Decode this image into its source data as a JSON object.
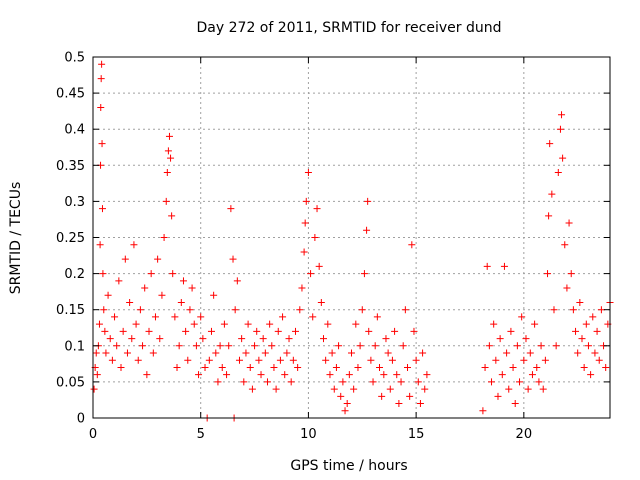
{
  "chart_data": {
    "type": "scatter",
    "title": "Day 272 of 2011, SRMTID for receiver dund",
    "xlabel": "GPS time / hours",
    "ylabel": "SRMTID / TECUs",
    "xlim": [
      0,
      24
    ],
    "ylim": [
      0,
      0.5
    ],
    "xticks": [
      0,
      5,
      10,
      15,
      20
    ],
    "yticks": [
      0,
      0.05,
      0.1,
      0.15,
      0.2,
      0.25,
      0.3,
      0.35,
      0.4,
      0.45,
      0.5
    ],
    "grid": true,
    "marker": "+",
    "color": "#ff0000",
    "points": [
      [
        0.05,
        0.04
      ],
      [
        0.1,
        0.07
      ],
      [
        0.15,
        0.09
      ],
      [
        0.2,
        0.06
      ],
      [
        0.25,
        0.1
      ],
      [
        0.3,
        0.13
      ],
      [
        0.33,
        0.24
      ],
      [
        0.35,
        0.35
      ],
      [
        0.36,
        0.43
      ],
      [
        0.38,
        0.47
      ],
      [
        0.4,
        0.49
      ],
      [
        0.42,
        0.38
      ],
      [
        0.44,
        0.29
      ],
      [
        0.46,
        0.2
      ],
      [
        0.5,
        0.15
      ],
      [
        0.55,
        0.12
      ],
      [
        0.6,
        0.09
      ],
      [
        0.7,
        0.17
      ],
      [
        0.8,
        0.11
      ],
      [
        0.9,
        0.08
      ],
      [
        1.0,
        0.14
      ],
      [
        1.1,
        0.1
      ],
      [
        1.2,
        0.19
      ],
      [
        1.3,
        0.07
      ],
      [
        1.4,
        0.12
      ],
      [
        1.5,
        0.22
      ],
      [
        1.6,
        0.09
      ],
      [
        1.7,
        0.16
      ],
      [
        1.8,
        0.11
      ],
      [
        1.9,
        0.24
      ],
      [
        2.0,
        0.13
      ],
      [
        2.1,
        0.08
      ],
      [
        2.2,
        0.15
      ],
      [
        2.3,
        0.1
      ],
      [
        2.4,
        0.18
      ],
      [
        2.5,
        0.06
      ],
      [
        2.6,
        0.12
      ],
      [
        2.7,
        0.2
      ],
      [
        2.8,
        0.09
      ],
      [
        2.9,
        0.14
      ],
      [
        3.0,
        0.22
      ],
      [
        3.1,
        0.11
      ],
      [
        3.2,
        0.17
      ],
      [
        3.3,
        0.25
      ],
      [
        3.4,
        0.3
      ],
      [
        3.45,
        0.34
      ],
      [
        3.5,
        0.37
      ],
      [
        3.55,
        0.39
      ],
      [
        3.6,
        0.36
      ],
      [
        3.65,
        0.28
      ],
      [
        3.7,
        0.2
      ],
      [
        3.8,
        0.14
      ],
      [
        3.9,
        0.07
      ],
      [
        4.0,
        0.1
      ],
      [
        4.1,
        0.16
      ],
      [
        4.2,
        0.19
      ],
      [
        4.3,
        0.12
      ],
      [
        4.4,
        0.08
      ],
      [
        4.5,
        0.15
      ],
      [
        4.6,
        0.18
      ],
      [
        4.7,
        0.13
      ],
      [
        4.8,
        0.1
      ],
      [
        4.9,
        0.06
      ],
      [
        5.0,
        0.14
      ],
      [
        5.1,
        0.11
      ],
      [
        5.2,
        0.07
      ],
      [
        5.3,
        0.0
      ],
      [
        5.4,
        0.08
      ],
      [
        5.5,
        0.12
      ],
      [
        5.6,
        0.17
      ],
      [
        5.7,
        0.09
      ],
      [
        5.8,
        0.05
      ],
      [
        5.9,
        0.1
      ],
      [
        6.0,
        0.07
      ],
      [
        6.1,
        0.13
      ],
      [
        6.2,
        0.06
      ],
      [
        6.3,
        0.1
      ],
      [
        6.4,
        0.29
      ],
      [
        6.5,
        0.22
      ],
      [
        6.55,
        0.0
      ],
      [
        6.6,
        0.15
      ],
      [
        6.7,
        0.19
      ],
      [
        6.8,
        0.08
      ],
      [
        6.9,
        0.11
      ],
      [
        7.0,
        0.05
      ],
      [
        7.1,
        0.09
      ],
      [
        7.2,
        0.13
      ],
      [
        7.3,
        0.07
      ],
      [
        7.4,
        0.04
      ],
      [
        7.5,
        0.1
      ],
      [
        7.6,
        0.12
      ],
      [
        7.7,
        0.08
      ],
      [
        7.8,
        0.06
      ],
      [
        7.9,
        0.11
      ],
      [
        8.0,
        0.09
      ],
      [
        8.1,
        0.05
      ],
      [
        8.2,
        0.13
      ],
      [
        8.3,
        0.1
      ],
      [
        8.4,
        0.07
      ],
      [
        8.5,
        0.04
      ],
      [
        8.6,
        0.12
      ],
      [
        8.7,
        0.08
      ],
      [
        8.8,
        0.14
      ],
      [
        8.9,
        0.06
      ],
      [
        9.0,
        0.09
      ],
      [
        9.1,
        0.11
      ],
      [
        9.2,
        0.05
      ],
      [
        9.3,
        0.08
      ],
      [
        9.4,
        0.12
      ],
      [
        9.5,
        0.07
      ],
      [
        9.6,
        0.15
      ],
      [
        9.7,
        0.18
      ],
      [
        9.8,
        0.23
      ],
      [
        9.85,
        0.27
      ],
      [
        9.9,
        0.3
      ],
      [
        10.0,
        0.34
      ],
      [
        10.1,
        0.2
      ],
      [
        10.2,
        0.14
      ],
      [
        10.3,
        0.25
      ],
      [
        10.4,
        0.29
      ],
      [
        10.5,
        0.21
      ],
      [
        10.6,
        0.16
      ],
      [
        10.7,
        0.11
      ],
      [
        10.8,
        0.08
      ],
      [
        10.9,
        0.13
      ],
      [
        11.0,
        0.06
      ],
      [
        11.1,
        0.09
      ],
      [
        11.2,
        0.04
      ],
      [
        11.3,
        0.07
      ],
      [
        11.4,
        0.1
      ],
      [
        11.5,
        0.03
      ],
      [
        11.6,
        0.05
      ],
      [
        11.7,
        0.01
      ],
      [
        11.8,
        0.02
      ],
      [
        11.9,
        0.06
      ],
      [
        12.0,
        0.09
      ],
      [
        12.1,
        0.04
      ],
      [
        12.2,
        0.13
      ],
      [
        12.3,
        0.07
      ],
      [
        12.4,
        0.1
      ],
      [
        12.5,
        0.15
      ],
      [
        12.6,
        0.2
      ],
      [
        12.7,
        0.26
      ],
      [
        12.75,
        0.3
      ],
      [
        12.8,
        0.12
      ],
      [
        12.9,
        0.08
      ],
      [
        13.0,
        0.05
      ],
      [
        13.1,
        0.1
      ],
      [
        13.2,
        0.14
      ],
      [
        13.3,
        0.07
      ],
      [
        13.4,
        0.03
      ],
      [
        13.5,
        0.06
      ],
      [
        13.6,
        0.11
      ],
      [
        13.7,
        0.09
      ],
      [
        13.8,
        0.04
      ],
      [
        13.9,
        0.08
      ],
      [
        14.0,
        0.12
      ],
      [
        14.1,
        0.06
      ],
      [
        14.2,
        0.02
      ],
      [
        14.3,
        0.05
      ],
      [
        14.4,
        0.1
      ],
      [
        14.5,
        0.15
      ],
      [
        14.6,
        0.07
      ],
      [
        14.7,
        0.03
      ],
      [
        14.8,
        0.24
      ],
      [
        14.9,
        0.12
      ],
      [
        15.0,
        0.08
      ],
      [
        15.1,
        0.05
      ],
      [
        15.2,
        0.02
      ],
      [
        15.3,
        0.09
      ],
      [
        15.4,
        0.04
      ],
      [
        15.5,
        0.06
      ],
      [
        18.1,
        0.01
      ],
      [
        18.2,
        0.07
      ],
      [
        18.3,
        0.21
      ],
      [
        18.4,
        0.1
      ],
      [
        18.5,
        0.05
      ],
      [
        18.6,
        0.13
      ],
      [
        18.7,
        0.08
      ],
      [
        18.8,
        0.03
      ],
      [
        18.9,
        0.11
      ],
      [
        19.0,
        0.06
      ],
      [
        19.1,
        0.21
      ],
      [
        19.2,
        0.09
      ],
      [
        19.3,
        0.04
      ],
      [
        19.4,
        0.12
      ],
      [
        19.5,
        0.07
      ],
      [
        19.6,
        0.02
      ],
      [
        19.7,
        0.1
      ],
      [
        19.8,
        0.05
      ],
      [
        19.9,
        0.14
      ],
      [
        20.0,
        0.08
      ],
      [
        20.1,
        0.11
      ],
      [
        20.2,
        0.04
      ],
      [
        20.3,
        0.09
      ],
      [
        20.4,
        0.06
      ],
      [
        20.5,
        0.13
      ],
      [
        20.6,
        0.07
      ],
      [
        20.7,
        0.05
      ],
      [
        20.8,
        0.1
      ],
      [
        20.9,
        0.04
      ],
      [
        21.0,
        0.08
      ],
      [
        21.1,
        0.2
      ],
      [
        21.15,
        0.28
      ],
      [
        21.2,
        0.38
      ],
      [
        21.3,
        0.31
      ],
      [
        21.4,
        0.15
      ],
      [
        21.5,
        0.1
      ],
      [
        21.6,
        0.34
      ],
      [
        21.7,
        0.4
      ],
      [
        21.75,
        0.42
      ],
      [
        21.8,
        0.36
      ],
      [
        21.9,
        0.24
      ],
      [
        22.0,
        0.18
      ],
      [
        22.1,
        0.27
      ],
      [
        22.2,
        0.2
      ],
      [
        22.3,
        0.15
      ],
      [
        22.4,
        0.12
      ],
      [
        22.5,
        0.09
      ],
      [
        22.6,
        0.16
      ],
      [
        22.7,
        0.11
      ],
      [
        22.8,
        0.07
      ],
      [
        22.9,
        0.13
      ],
      [
        23.0,
        0.1
      ],
      [
        23.1,
        0.06
      ],
      [
        23.2,
        0.14
      ],
      [
        23.3,
        0.09
      ],
      [
        23.4,
        0.12
      ],
      [
        23.5,
        0.08
      ],
      [
        23.6,
        0.15
      ],
      [
        23.7,
        0.1
      ],
      [
        23.8,
        0.07
      ],
      [
        23.9,
        0.13
      ],
      [
        24.0,
        0.16
      ]
    ]
  }
}
